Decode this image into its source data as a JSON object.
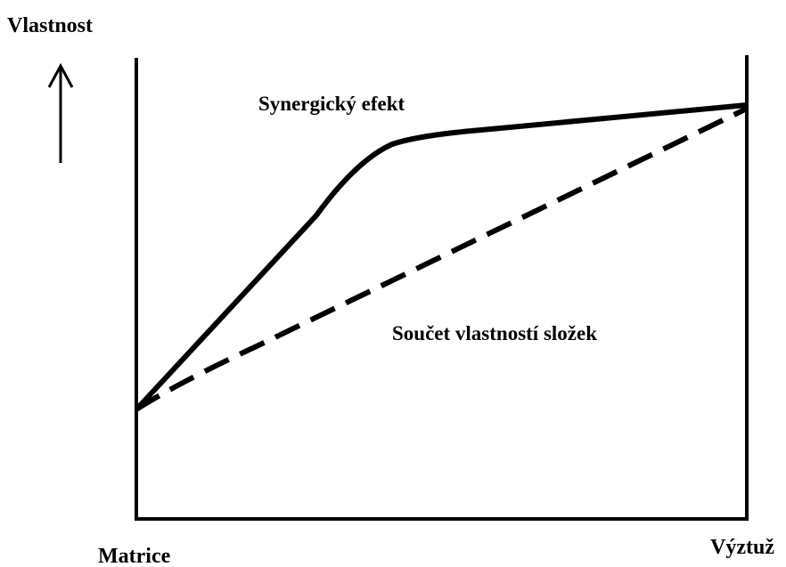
{
  "axis_label": "Vlastnost",
  "curves": [
    {
      "label": "Synergický efekt"
    },
    {
      "label": "Součet vlastností složek"
    }
  ],
  "x_start_label": "Matrice",
  "x_end_label": "Výztuž"
}
